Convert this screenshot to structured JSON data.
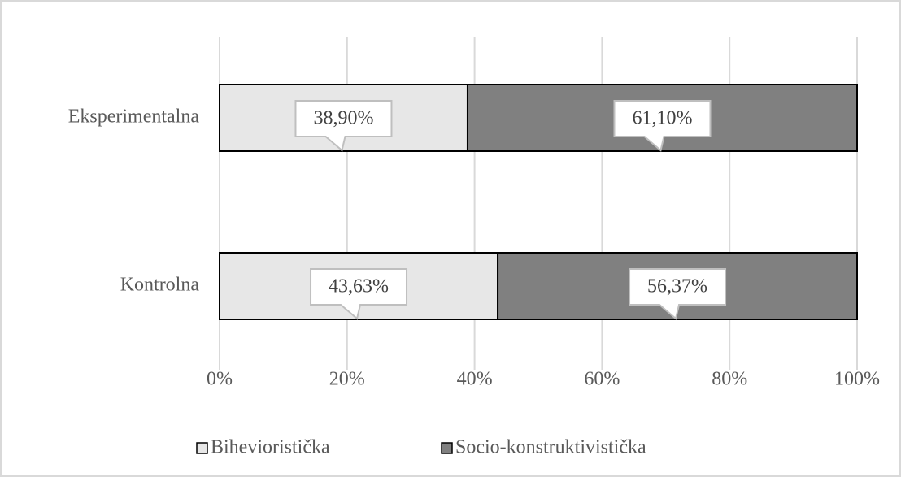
{
  "chart_data": {
    "type": "bar",
    "orientation": "horizontal",
    "stacked": true,
    "categories": [
      "Eksperimentalna",
      "Kontrolna"
    ],
    "series": [
      {
        "name": "Bihevioristička",
        "color": "#e7e7e7",
        "values": [
          38.9,
          43.63
        ],
        "value_labels": [
          "38,90%",
          "43,63%"
        ]
      },
      {
        "name": "Socio-konstruktivistička",
        "color": "#808080",
        "values": [
          61.1,
          56.37
        ],
        "value_labels": [
          "61,10%",
          "56,37%"
        ]
      }
    ],
    "xlim": [
      0,
      100
    ],
    "xticks": [
      {
        "value": 0,
        "label": "0%"
      },
      {
        "value": 20,
        "label": "20%"
      },
      {
        "value": 40,
        "label": "40%"
      },
      {
        "value": 60,
        "label": "60%"
      },
      {
        "value": 80,
        "label": "80%"
      },
      {
        "value": 100,
        "label": "100%"
      }
    ],
    "grid": true,
    "legend": "bottom"
  }
}
